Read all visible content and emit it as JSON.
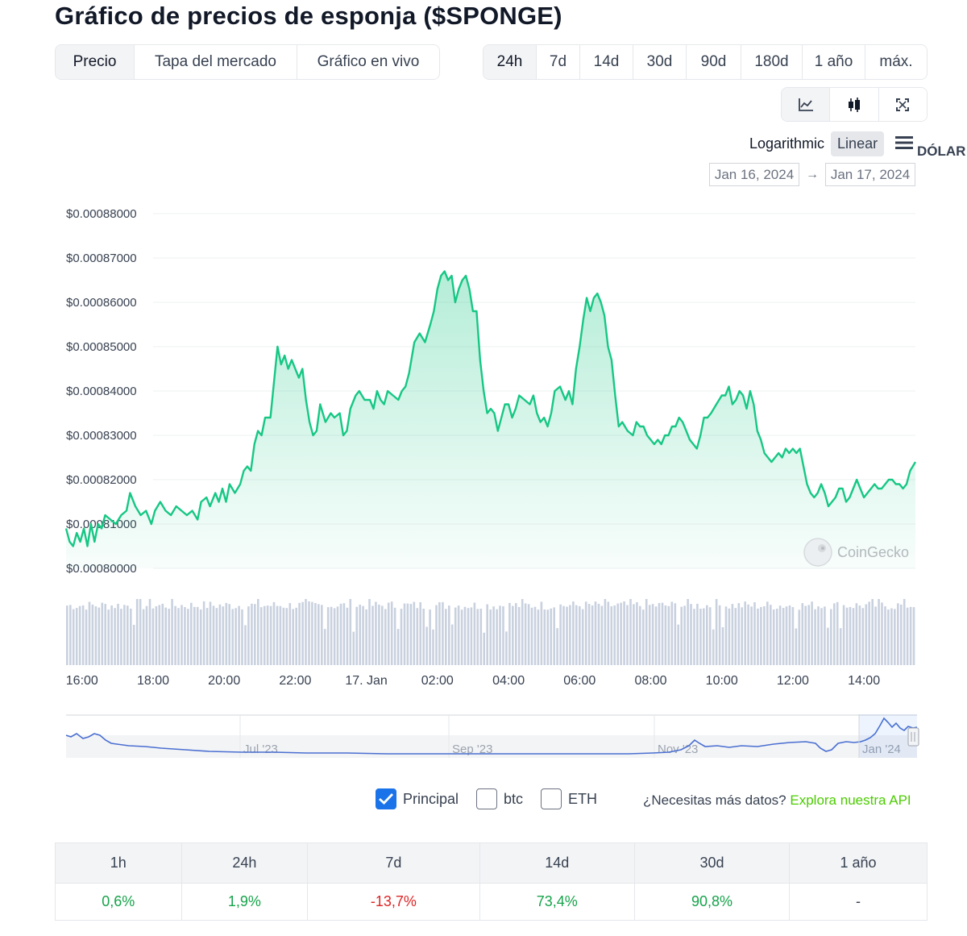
{
  "page": {
    "title": "Gráfico de precios de esponja ($SPONGE)"
  },
  "view_tabs": [
    {
      "label": "Precio",
      "active": true
    },
    {
      "label": "Tapa del mercado",
      "active": false
    },
    {
      "label": "Gráfico en vivo",
      "active": false
    }
  ],
  "range_tabs": [
    {
      "label": "24h",
      "active": true
    },
    {
      "label": "7d",
      "active": false
    },
    {
      "label": "14d",
      "active": false
    },
    {
      "label": "30d",
      "active": false
    },
    {
      "label": "90d",
      "active": false
    },
    {
      "label": "180d",
      "active": false
    },
    {
      "label": "1 año",
      "active": false
    },
    {
      "label": "máx.",
      "active": false
    }
  ],
  "tools": [
    {
      "icon": "line-chart-icon",
      "active": true
    },
    {
      "icon": "candlestick-icon",
      "active": false
    },
    {
      "icon": "fullscreen-icon",
      "active": false
    }
  ],
  "scale": {
    "log_label": "Logarithmic",
    "linear_label": "Linear",
    "selected": "Linear"
  },
  "currency": "DÓLAR",
  "date_range": {
    "from": "Jan 16, 2024",
    "to": "Jan 17, 2024",
    "arrow": "→"
  },
  "watermark": "CoinGecko",
  "chart_data": {
    "type": "line",
    "title": "",
    "xlabel": "",
    "ylabel": "",
    "ylim": [
      0.0008,
      0.00088
    ],
    "y_ticks": [
      "$0.00088000",
      "$0.00087000",
      "$0.00086000",
      "$0.00085000",
      "$0.00084000",
      "$0.00083000",
      "$0.00082000",
      "$0.00081000",
      "$0.00080000"
    ],
    "x_ticks": [
      {
        "t": 16.0,
        "label": "16:00"
      },
      {
        "t": 18.0,
        "label": "18:00"
      },
      {
        "t": 20.0,
        "label": "20:00"
      },
      {
        "t": 22.0,
        "label": "22:00"
      },
      {
        "t": 24.0,
        "label": "17. Jan"
      },
      {
        "t": 26.0,
        "label": "02:00"
      },
      {
        "t": 28.0,
        "label": "04:00"
      },
      {
        "t": 30.0,
        "label": "06:00"
      },
      {
        "t": 32.0,
        "label": "08:00"
      },
      {
        "t": 34.0,
        "label": "10:00"
      },
      {
        "t": 36.0,
        "label": "12:00"
      },
      {
        "t": 38.0,
        "label": "14:00"
      }
    ],
    "x_range": [
      15.55,
      39.45
    ],
    "line_color": "#16c784",
    "series": [
      {
        "values": [
          [
            15.55,
            0.000809
          ],
          [
            15.65,
            0.000806
          ],
          [
            15.75,
            0.000805
          ],
          [
            15.85,
            0.000808
          ],
          [
            15.95,
            0.000806
          ],
          [
            16.05,
            0.000809
          ],
          [
            16.15,
            0.000805
          ],
          [
            16.25,
            0.00081
          ],
          [
            16.35,
            0.000806
          ],
          [
            16.45,
            0.00081
          ],
          [
            16.55,
            0.000809
          ],
          [
            16.65,
            0.000812
          ],
          [
            16.8,
            0.000811
          ],
          [
            16.95,
            0.00081
          ],
          [
            17.1,
            0.000812
          ],
          [
            17.25,
            0.000813
          ],
          [
            17.35,
            0.000817
          ],
          [
            17.5,
            0.000814
          ],
          [
            17.65,
            0.000812
          ],
          [
            17.8,
            0.000813
          ],
          [
            17.95,
            0.00081
          ],
          [
            18.05,
            0.000813
          ],
          [
            18.2,
            0.000815
          ],
          [
            18.35,
            0.000813
          ],
          [
            18.5,
            0.000812
          ],
          [
            18.65,
            0.000814
          ],
          [
            18.8,
            0.000813
          ],
          [
            18.95,
            0.000812
          ],
          [
            19.1,
            0.000813
          ],
          [
            19.25,
            0.000811
          ],
          [
            19.35,
            0.000815
          ],
          [
            19.5,
            0.000816
          ],
          [
            19.6,
            0.000814
          ],
          [
            19.75,
            0.000817
          ],
          [
            19.85,
            0.000815
          ],
          [
            19.95,
            0.000818
          ],
          [
            20.05,
            0.000815
          ],
          [
            20.15,
            0.000819
          ],
          [
            20.3,
            0.000817
          ],
          [
            20.45,
            0.000819
          ],
          [
            20.55,
            0.000822
          ],
          [
            20.65,
            0.000823
          ],
          [
            20.75,
            0.000822
          ],
          [
            20.85,
            0.000828
          ],
          [
            20.95,
            0.000831
          ],
          [
            21.05,
            0.00083
          ],
          [
            21.15,
            0.000834
          ],
          [
            21.3,
            0.000834
          ],
          [
            21.4,
            0.000842
          ],
          [
            21.5,
            0.00085
          ],
          [
            21.6,
            0.000846
          ],
          [
            21.7,
            0.000848
          ],
          [
            21.8,
            0.000845
          ],
          [
            21.9,
            0.000847
          ],
          [
            22.0,
            0.000845
          ],
          [
            22.1,
            0.000843
          ],
          [
            22.2,
            0.000845
          ],
          [
            22.3,
            0.000838
          ],
          [
            22.4,
            0.000833
          ],
          [
            22.5,
            0.00083
          ],
          [
            22.6,
            0.000831
          ],
          [
            22.7,
            0.000837
          ],
          [
            22.85,
            0.000833
          ],
          [
            23.0,
            0.000835
          ],
          [
            23.1,
            0.000834
          ],
          [
            23.25,
            0.000835
          ],
          [
            23.35,
            0.00083
          ],
          [
            23.45,
            0.000831
          ],
          [
            23.55,
            0.000836
          ],
          [
            23.7,
            0.000839
          ],
          [
            23.8,
            0.00084
          ],
          [
            23.95,
            0.000838
          ],
          [
            24.1,
            0.000838
          ],
          [
            24.2,
            0.000836
          ],
          [
            24.3,
            0.00084
          ],
          [
            24.4,
            0.000838
          ],
          [
            24.5,
            0.000837
          ],
          [
            24.6,
            0.00084
          ],
          [
            24.75,
            0.000839
          ],
          [
            24.9,
            0.000838
          ],
          [
            25.0,
            0.00084
          ],
          [
            25.1,
            0.000841
          ],
          [
            25.2,
            0.000844
          ],
          [
            25.35,
            0.000851
          ],
          [
            25.5,
            0.000853
          ],
          [
            25.65,
            0.000851
          ],
          [
            25.8,
            0.000855
          ],
          [
            25.9,
            0.000858
          ],
          [
            26.0,
            0.000863
          ],
          [
            26.1,
            0.000866
          ],
          [
            26.2,
            0.000867
          ],
          [
            26.3,
            0.000865
          ],
          [
            26.4,
            0.000866
          ],
          [
            26.5,
            0.00086
          ],
          [
            26.6,
            0.000863
          ],
          [
            26.7,
            0.000865
          ],
          [
            26.8,
            0.000866
          ],
          [
            26.9,
            0.000863
          ],
          [
            27.0,
            0.000858
          ],
          [
            27.1,
            0.000858
          ],
          [
            27.2,
            0.000847
          ],
          [
            27.3,
            0.00084
          ],
          [
            27.4,
            0.000835
          ],
          [
            27.5,
            0.000836
          ],
          [
            27.6,
            0.000835
          ],
          [
            27.7,
            0.000831
          ],
          [
            27.8,
            0.000834
          ],
          [
            27.9,
            0.000837
          ],
          [
            28.0,
            0.000837
          ],
          [
            28.1,
            0.000834
          ],
          [
            28.2,
            0.000836
          ],
          [
            28.3,
            0.000839
          ],
          [
            28.45,
            0.000838
          ],
          [
            28.6,
            0.000837
          ],
          [
            28.7,
            0.000839
          ],
          [
            28.8,
            0.000835
          ],
          [
            28.9,
            0.000833
          ],
          [
            29.0,
            0.000834
          ],
          [
            29.1,
            0.000832
          ],
          [
            29.2,
            0.000835
          ],
          [
            29.3,
            0.00084
          ],
          [
            29.45,
            0.000841
          ],
          [
            29.6,
            0.000838
          ],
          [
            29.7,
            0.00084
          ],
          [
            29.8,
            0.000837
          ],
          [
            29.9,
            0.000845
          ],
          [
            30.0,
            0.00085
          ],
          [
            30.1,
            0.000856
          ],
          [
            30.2,
            0.000861
          ],
          [
            30.3,
            0.000858
          ],
          [
            30.4,
            0.000861
          ],
          [
            30.5,
            0.000862
          ],
          [
            30.6,
            0.00086
          ],
          [
            30.7,
            0.000857
          ],
          [
            30.8,
            0.00085
          ],
          [
            30.9,
            0.000847
          ],
          [
            31.0,
            0.000839
          ],
          [
            31.1,
            0.000832
          ],
          [
            31.2,
            0.000833
          ],
          [
            31.35,
            0.000831
          ],
          [
            31.5,
            0.00083
          ],
          [
            31.6,
            0.000833
          ],
          [
            31.7,
            0.000832
          ],
          [
            31.8,
            0.000832
          ],
          [
            31.9,
            0.00083
          ],
          [
            32.0,
            0.000829
          ],
          [
            32.1,
            0.000828
          ],
          [
            32.2,
            0.000829
          ],
          [
            32.3,
            0.000828
          ],
          [
            32.4,
            0.00083
          ],
          [
            32.5,
            0.00083
          ],
          [
            32.6,
            0.000832
          ],
          [
            32.7,
            0.000832
          ],
          [
            32.8,
            0.000834
          ],
          [
            32.9,
            0.000833
          ],
          [
            33.0,
            0.000831
          ],
          [
            33.1,
            0.000829
          ],
          [
            33.2,
            0.000828
          ],
          [
            33.3,
            0.000827
          ],
          [
            33.4,
            0.00083
          ],
          [
            33.5,
            0.000834
          ],
          [
            33.6,
            0.000834
          ],
          [
            33.7,
            0.000835
          ],
          [
            33.85,
            0.000837
          ],
          [
            34.0,
            0.000839
          ],
          [
            34.1,
            0.000839
          ],
          [
            34.2,
            0.000841
          ],
          [
            34.3,
            0.000837
          ],
          [
            34.4,
            0.000838
          ],
          [
            34.5,
            0.00084
          ],
          [
            34.6,
            0.000839
          ],
          [
            34.7,
            0.000836
          ],
          [
            34.8,
            0.00084
          ],
          [
            34.9,
            0.000837
          ],
          [
            35.0,
            0.000831
          ],
          [
            35.1,
            0.000829
          ],
          [
            35.2,
            0.000826
          ],
          [
            35.3,
            0.000825
          ],
          [
            35.4,
            0.000824
          ],
          [
            35.5,
            0.000825
          ],
          [
            35.6,
            0.000826
          ],
          [
            35.7,
            0.000825
          ],
          [
            35.8,
            0.000827
          ],
          [
            35.9,
            0.000826
          ],
          [
            36.0,
            0.000827
          ],
          [
            36.1,
            0.000826
          ],
          [
            36.2,
            0.000827
          ],
          [
            36.3,
            0.000823
          ],
          [
            36.4,
            0.000819
          ],
          [
            36.5,
            0.000817
          ],
          [
            36.6,
            0.000816
          ],
          [
            36.7,
            0.000817
          ],
          [
            36.8,
            0.000819
          ],
          [
            36.9,
            0.000817
          ],
          [
            37.0,
            0.000814
          ],
          [
            37.1,
            0.000815
          ],
          [
            37.2,
            0.000816
          ],
          [
            37.3,
            0.000818
          ],
          [
            37.4,
            0.000818
          ],
          [
            37.5,
            0.000815
          ],
          [
            37.6,
            0.000816
          ],
          [
            37.7,
            0.000818
          ],
          [
            37.8,
            0.00082
          ],
          [
            37.9,
            0.000818
          ],
          [
            38.0,
            0.000816
          ],
          [
            38.1,
            0.000817
          ],
          [
            38.2,
            0.000818
          ],
          [
            38.3,
            0.000819
          ],
          [
            38.4,
            0.000818
          ],
          [
            38.5,
            0.000818
          ],
          [
            38.6,
            0.000819
          ],
          [
            38.7,
            0.00082
          ],
          [
            38.8,
            0.00082
          ],
          [
            38.9,
            0.000819
          ],
          [
            39.0,
            0.000819
          ],
          [
            39.1,
            0.000818
          ],
          [
            39.2,
            0.000819
          ],
          [
            39.3,
            0.000822
          ],
          [
            39.45,
            0.000824
          ]
        ]
      }
    ],
    "navigator": {
      "ticks": [
        "Jul '23",
        "Sep '23",
        "Nov '23",
        "Jan '24"
      ],
      "line_color": "#4a6fd1"
    }
  },
  "comparisons": {
    "items": [
      {
        "label": "Principal",
        "checked": true
      },
      {
        "label": "btc",
        "checked": false
      },
      {
        "label": "ETH",
        "checked": false
      }
    ],
    "api_question": "¿Necesitas más datos?",
    "api_link": "Explora nuestra API"
  },
  "change_table": {
    "headers": [
      "1h",
      "24h",
      "7d",
      "14d",
      "30d",
      "1 año"
    ],
    "values": [
      {
        "text": "0,6%",
        "tone": "pos"
      },
      {
        "text": "1,9%",
        "tone": "pos"
      },
      {
        "text": "-13,7%",
        "tone": "neg"
      },
      {
        "text": "73,4%",
        "tone": "pos"
      },
      {
        "text": "90,8%",
        "tone": "pos"
      },
      {
        "text": "-",
        "tone": "neu"
      }
    ]
  }
}
